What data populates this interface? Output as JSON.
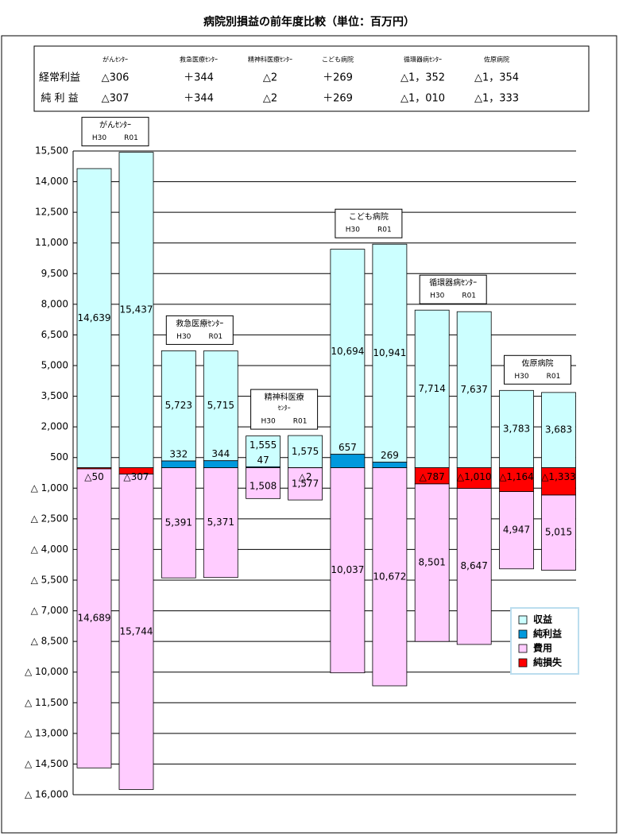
{
  "chart_data": {
    "type": "bar",
    "title": "病院別損益の前年度比較（単位：百万円）",
    "groups": [
      "がんｾﾝﾀｰ",
      "救急医療ｾﾝﾀｰ",
      "精神科医療ｾﾝﾀｰ",
      "こども病院",
      "循環器病ｾﾝﾀｰ",
      "佐原病院"
    ],
    "periods": [
      "H30",
      "R01"
    ],
    "series": [
      {
        "name": "収益",
        "color": "#ccffff",
        "values": [
          14639,
          15437,
          5723,
          5715,
          1555,
          1575,
          10694,
          10941,
          7714,
          7637,
          3783,
          3683
        ],
        "value_labels": [
          "14,639",
          "15,437",
          "5,723",
          "5,715",
          "1,555",
          "1,575",
          "10,694",
          "10,941",
          "7,714",
          "7,637",
          "3,783",
          "3,683"
        ]
      },
      {
        "name": "純利益",
        "color": "#0099dd",
        "values": [
          null,
          null,
          332,
          344,
          47,
          null,
          657,
          269,
          null,
          null,
          null,
          null
        ]
      },
      {
        "name": "費用",
        "color": "#ffccff",
        "values": [
          -14689,
          -15744,
          -5391,
          -5371,
          -1508,
          -1577,
          -10037,
          -10672,
          -8501,
          -8647,
          -4947,
          -5015
        ],
        "value_labels": [
          "14,689",
          "15,744",
          "5,391",
          "5,371",
          "1,508",
          "1,577",
          "10,037",
          "10,672",
          "8,501",
          "8,647",
          "4,947",
          "5,015"
        ]
      },
      {
        "name": "純損失",
        "color": "#ff0000",
        "values": [
          -50,
          -307,
          null,
          null,
          null,
          -2,
          null,
          null,
          -787,
          -1010,
          -1164,
          -1333
        ],
        "value_labels": [
          "△50",
          "△307",
          null,
          null,
          null,
          "△2",
          null,
          null,
          "△787",
          "△1,010",
          "△1,164",
          "△1,333"
        ]
      }
    ],
    "ylim": [
      -16000,
      15500
    ],
    "yticks": [
      {
        "value": 15500,
        "label": "15,500"
      },
      {
        "value": 14000,
        "label": "14,000"
      },
      {
        "value": 12500,
        "label": "12,500"
      },
      {
        "value": 11000,
        "label": "11,000"
      },
      {
        "value": 9500,
        "label": "9,500"
      },
      {
        "value": 8000,
        "label": "8,000"
      },
      {
        "value": 6500,
        "label": "6,500"
      },
      {
        "value": 5000,
        "label": "5,000"
      },
      {
        "value": 3500,
        "label": "3,500"
      },
      {
        "value": 2000,
        "label": "2,000"
      },
      500,
      {
        "value": -1000,
        "label": "△ 1,000"
      },
      {
        "value": -2500,
        "label": "△ 2,500"
      },
      {
        "value": -4000,
        "label": "△ 4,000"
      },
      {
        "value": -5500,
        "label": "△ 5,500"
      },
      {
        "value": -7000,
        "label": "△ 7,000"
      },
      {
        "value": -8500,
        "label": "△ 8,500"
      },
      {
        "value": -10000,
        "label": "△ 10,000"
      },
      {
        "value": -11500,
        "label": "△ 11,500"
      },
      {
        "value": -13000,
        "label": "△ 13,000"
      },
      {
        "value": -14500,
        "label": "△ 14,500"
      },
      {
        "value": -16000,
        "label": "△ 16,000"
      }
    ],
    "grid": true,
    "legend": "lower right"
  },
  "table": {
    "rows": [
      {
        "label": "経常利益",
        "cells": [
          "△306",
          "＋344",
          "△2",
          "＋269",
          "△1，352",
          "△1，354"
        ]
      },
      {
        "label": "純 利 益",
        "cells": [
          "△307",
          "＋344",
          "△2",
          "＋269",
          "△1，010",
          "△1，333"
        ]
      }
    ]
  }
}
